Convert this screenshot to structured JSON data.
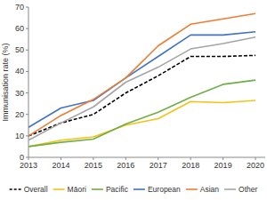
{
  "chart_data": {
    "type": "line",
    "y_label": "Immunisation rate (%)",
    "x": [
      2013,
      2014,
      2015,
      2016,
      2017,
      2018,
      2019,
      2020
    ],
    "xlim": [
      2013,
      2020.3
    ],
    "xticks": [
      2013,
      2014,
      2015,
      2016,
      2017,
      2018,
      2019,
      2020
    ],
    "ylim": [
      0,
      70
    ],
    "yticks": [
      0,
      10,
      20,
      30,
      40,
      50,
      60,
      70
    ],
    "grid": false,
    "legend": "bottom",
    "series": [
      {
        "name": "Overall",
        "color": "#000000",
        "line_style": "dashed",
        "values": [
          10,
          16,
          20,
          30,
          38,
          47,
          47,
          47.5
        ]
      },
      {
        "name": "Māori",
        "color": "#f2c314",
        "line_style": "solid",
        "values": [
          5,
          8,
          9.5,
          15,
          18,
          26,
          25.5,
          26.5
        ]
      },
      {
        "name": "Pacific",
        "color": "#70ad47",
        "line_style": "solid",
        "values": [
          5,
          7,
          8.5,
          15.5,
          21,
          28,
          34,
          36
        ]
      },
      {
        "name": "European",
        "color": "#4472c4",
        "line_style": "solid",
        "values": [
          14,
          23,
          26.5,
          37,
          47,
          57,
          57,
          58.5
        ]
      },
      {
        "name": "Asian",
        "color": "#ed7d31",
        "line_style": "solid",
        "values": [
          10,
          19.5,
          27,
          37,
          52,
          62,
          64.5,
          67
        ]
      },
      {
        "name": "Other",
        "color": "#a5a5a5",
        "line_style": "solid",
        "values": [
          8,
          16,
          23.5,
          35,
          42,
          50.5,
          53,
          56
        ]
      }
    ]
  }
}
